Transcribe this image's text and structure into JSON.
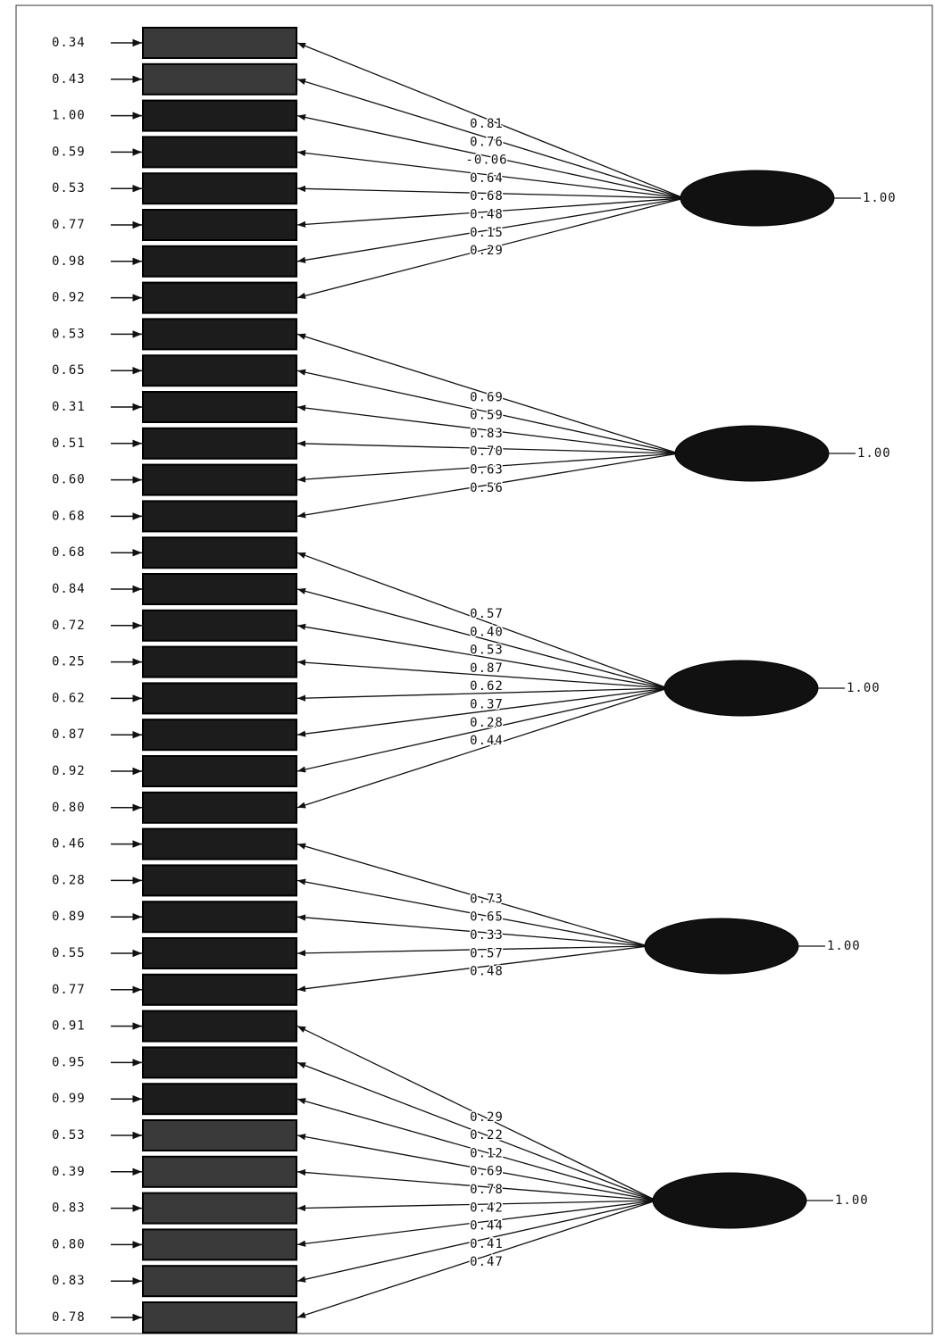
{
  "indicators": [
    {
      "error": "0.34"
    },
    {
      "error": "0.43"
    },
    {
      "error": "1.00"
    },
    {
      "error": "0.59"
    },
    {
      "error": "0.53"
    },
    {
      "error": "0.77"
    },
    {
      "error": "0.98"
    },
    {
      "error": "0.92"
    },
    {
      "error": "0.53"
    },
    {
      "error": "0.65"
    },
    {
      "error": "0.31"
    },
    {
      "error": "0.51"
    },
    {
      "error": "0.60"
    },
    {
      "error": "0.68"
    },
    {
      "error": "0.68"
    },
    {
      "error": "0.84"
    },
    {
      "error": "0.72"
    },
    {
      "error": "0.25"
    },
    {
      "error": "0.62"
    },
    {
      "error": "0.87"
    },
    {
      "error": "0.92"
    },
    {
      "error": "0.80"
    },
    {
      "error": "0.46"
    },
    {
      "error": "0.28"
    },
    {
      "error": "0.89"
    },
    {
      "error": "0.55"
    },
    {
      "error": "0.77"
    },
    {
      "error": "0.91"
    },
    {
      "error": "0.95"
    },
    {
      "error": "0.99"
    },
    {
      "error": "0.53"
    },
    {
      "error": "0.39"
    },
    {
      "error": "0.83"
    },
    {
      "error": "0.80"
    },
    {
      "error": "0.83"
    },
    {
      "error": "0.78"
    }
  ],
  "factors": [
    {
      "variance": "1.00",
      "loadings": [
        "0.81",
        "0.76",
        "-0.06",
        "0.64",
        "0.68",
        "0.48",
        "0.15",
        "0.29"
      ]
    },
    {
      "variance": "1.00",
      "loadings": [
        "0.69",
        "0.59",
        "0.83",
        "0.70",
        "0.63",
        "0.56"
      ]
    },
    {
      "variance": "1.00",
      "loadings": [
        "0.57",
        "0.40",
        "0.53",
        "0.87",
        "0.62",
        "0.37",
        "0.28",
        "0.44"
      ]
    },
    {
      "variance": "1.00",
      "loadings": [
        "0.73",
        "0.65",
        "0.33",
        "0.57",
        "0.48"
      ]
    },
    {
      "variance": "1.00",
      "loadings": [
        "0.29",
        "0.22",
        "0.12",
        "0.69",
        "0.78",
        "0.42",
        "0.44",
        "0.41",
        "0.47"
      ]
    }
  ]
}
